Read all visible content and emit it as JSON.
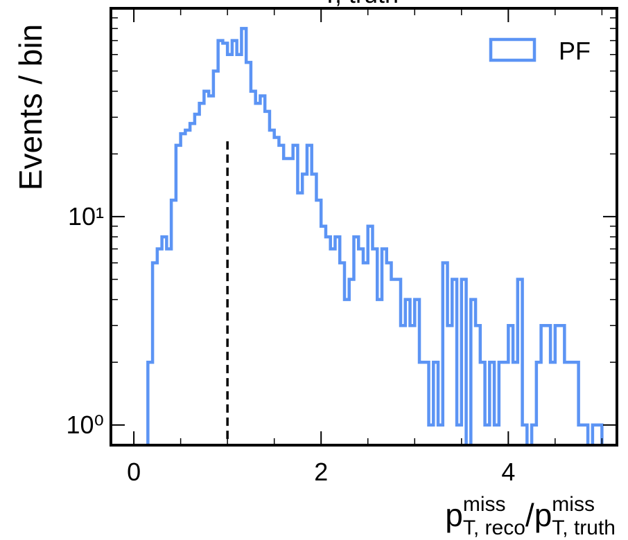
{
  "chart_data": {
    "type": "histogram",
    "title": "T, truth",
    "ylabel": "Events / bin",
    "xlabel_parts": [
      "p",
      "miss",
      "T, reco",
      "/p",
      "miss",
      "T, truth"
    ],
    "series": [
      {
        "name": "PF",
        "color": "#5c94f4",
        "bins": [
          0.15,
          0.2,
          0.25,
          0.3,
          0.35,
          0.4,
          0.45,
          0.5,
          0.55,
          0.6,
          0.65,
          0.7,
          0.75,
          0.8,
          0.85,
          0.9,
          0.95,
          1.0,
          1.05,
          1.1,
          1.15,
          1.2,
          1.25,
          1.3,
          1.35,
          1.4,
          1.45,
          1.5,
          1.55,
          1.6,
          1.65,
          1.7,
          1.75,
          1.8,
          1.85,
          1.9,
          1.95,
          2.0,
          2.05,
          2.1,
          2.15,
          2.2,
          2.25,
          2.3,
          2.35,
          2.4,
          2.45,
          2.5,
          2.55,
          2.6,
          2.65,
          2.7,
          2.75,
          2.8,
          2.85,
          2.9,
          2.95,
          3.0,
          3.05,
          3.1,
          3.15,
          3.2,
          3.25,
          3.3,
          3.35,
          3.4,
          3.45,
          3.5,
          3.55,
          3.6,
          3.65,
          3.7,
          3.75,
          3.8,
          3.85,
          3.9,
          3.95,
          4.0,
          4.05,
          4.1,
          4.15,
          4.2,
          4.25,
          4.3,
          4.35,
          4.4,
          4.45,
          4.5,
          4.55,
          4.6,
          4.65,
          4.7,
          4.75,
          4.8,
          4.85,
          4.9,
          4.95,
          5.0
        ],
        "values": [
          2,
          6,
          7,
          8,
          7,
          12,
          22,
          25,
          26,
          28,
          31,
          35,
          40,
          38,
          50,
          70,
          68,
          60,
          70,
          60,
          80,
          55,
          40,
          35,
          38,
          32,
          26,
          24,
          22,
          19,
          19,
          22,
          13,
          16,
          22,
          16,
          12,
          9,
          8,
          7,
          8,
          6,
          4,
          5,
          8,
          7,
          6,
          9,
          7,
          4,
          7,
          6,
          5,
          5,
          3,
          4,
          3,
          4,
          2,
          2,
          1,
          2,
          1,
          6,
          3,
          5,
          1,
          5,
          0,
          4,
          3,
          2,
          1,
          2,
          1,
          2,
          2,
          3,
          2,
          5,
          1,
          0,
          1,
          2,
          3,
          3,
          2,
          3,
          3,
          2,
          2,
          2,
          1,
          1,
          0,
          1,
          1
        ]
      }
    ],
    "vline": {
      "x": 1,
      "ymax": 23
    },
    "xlim": [
      -0.245,
      5.16
    ],
    "xticks": [
      0,
      2,
      4
    ],
    "xticks_minor": [
      0.5,
      1,
      1.5,
      2.5,
      3,
      3.5,
      4.5,
      5
    ],
    "ylim": [
      0.8,
      100
    ],
    "yscale": "log",
    "yticks": [
      {
        "value": 1,
        "label": "10⁰"
      },
      {
        "value": 10,
        "label": "10¹"
      }
    ],
    "yticks_minor": [
      2,
      3,
      4,
      5,
      6,
      7,
      8,
      9,
      20,
      30,
      40,
      50,
      60,
      70,
      80,
      90
    ],
    "legend": "upper right"
  }
}
